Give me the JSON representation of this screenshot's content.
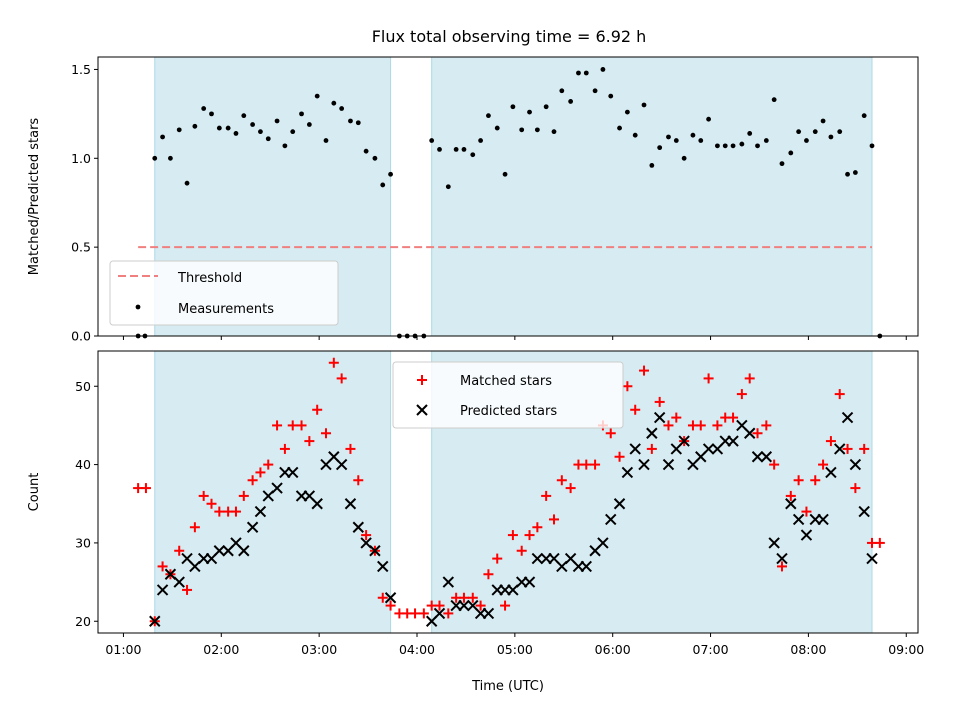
{
  "figure": {
    "title": "Flux total observing time = 6.92 h",
    "xlabel": "Time (UTC)"
  },
  "colors": {
    "shade": "#add8e6",
    "threshold": "#f08080",
    "measurements": "#000000",
    "matched": "#ff0000",
    "predicted": "#000000"
  },
  "shaded_intervals_hours": [
    [
      1.32,
      3.73
    ],
    [
      4.15,
      8.65
    ]
  ],
  "chart_data": [
    {
      "type": "scatter",
      "ylabel": "Matched/Predicted stars",
      "xlim_hours": [
        0.74,
        9.12
      ],
      "ylim": [
        0,
        1.57
      ],
      "yticks": [
        "0.0",
        "0.5",
        "1.0",
        "1.5"
      ],
      "legend_position": "lower left",
      "threshold": {
        "name": "Threshold",
        "value": 0.5,
        "x_range_hours": [
          1.15,
          8.65
        ]
      },
      "series": [
        {
          "name": "Measurements",
          "points": [
            [
              1.15,
              0.0
            ],
            [
              1.22,
              0.0
            ],
            [
              1.32,
              1.0
            ],
            [
              1.4,
              1.12
            ],
            [
              1.48,
              1.0
            ],
            [
              1.57,
              1.16
            ],
            [
              1.65,
              0.86
            ],
            [
              1.73,
              1.18
            ],
            [
              1.82,
              1.28
            ],
            [
              1.9,
              1.25
            ],
            [
              1.98,
              1.17
            ],
            [
              2.07,
              1.17
            ],
            [
              2.15,
              1.14
            ],
            [
              2.23,
              1.24
            ],
            [
              2.32,
              1.19
            ],
            [
              2.4,
              1.15
            ],
            [
              2.48,
              1.11
            ],
            [
              2.57,
              1.21
            ],
            [
              2.65,
              1.07
            ],
            [
              2.73,
              1.15
            ],
            [
              2.82,
              1.25
            ],
            [
              2.9,
              1.19
            ],
            [
              2.98,
              1.35
            ],
            [
              3.07,
              1.1
            ],
            [
              3.15,
              1.31
            ],
            [
              3.23,
              1.28
            ],
            [
              3.32,
              1.21
            ],
            [
              3.4,
              1.2
            ],
            [
              3.48,
              1.04
            ],
            [
              3.57,
              1.0
            ],
            [
              3.65,
              0.85
            ],
            [
              3.73,
              0.91
            ],
            [
              3.82,
              0.0
            ],
            [
              3.9,
              0.0
            ],
            [
              3.98,
              0.0
            ],
            [
              4.07,
              0.0
            ],
            [
              4.15,
              1.1
            ],
            [
              4.23,
              1.05
            ],
            [
              4.32,
              0.84
            ],
            [
              4.4,
              1.05
            ],
            [
              4.48,
              1.05
            ],
            [
              4.57,
              1.02
            ],
            [
              4.65,
              1.1
            ],
            [
              4.73,
              1.24
            ],
            [
              4.82,
              1.17
            ],
            [
              4.9,
              0.91
            ],
            [
              4.98,
              1.29
            ],
            [
              5.07,
              1.16
            ],
            [
              5.15,
              1.26
            ],
            [
              5.23,
              1.16
            ],
            [
              5.32,
              1.29
            ],
            [
              5.4,
              1.15
            ],
            [
              5.48,
              1.38
            ],
            [
              5.57,
              1.32
            ],
            [
              5.65,
              1.48
            ],
            [
              5.73,
              1.48
            ],
            [
              5.82,
              1.38
            ],
            [
              5.9,
              1.5
            ],
            [
              5.98,
              1.35
            ],
            [
              6.07,
              1.17
            ],
            [
              6.15,
              1.26
            ],
            [
              6.23,
              1.13
            ],
            [
              6.32,
              1.3
            ],
            [
              6.4,
              0.96
            ],
            [
              6.48,
              1.06
            ],
            [
              6.57,
              1.12
            ],
            [
              6.65,
              1.1
            ],
            [
              6.73,
              1.0
            ],
            [
              6.82,
              1.13
            ],
            [
              6.9,
              1.1
            ],
            [
              6.98,
              1.22
            ],
            [
              7.07,
              1.07
            ],
            [
              7.15,
              1.07
            ],
            [
              7.23,
              1.07
            ],
            [
              7.32,
              1.08
            ],
            [
              7.4,
              1.14
            ],
            [
              7.48,
              1.07
            ],
            [
              7.57,
              1.1
            ],
            [
              7.65,
              1.33
            ],
            [
              7.73,
              0.97
            ],
            [
              7.82,
              1.03
            ],
            [
              7.9,
              1.15
            ],
            [
              7.98,
              1.1
            ],
            [
              8.07,
              1.15
            ],
            [
              8.15,
              1.21
            ],
            [
              8.23,
              1.12
            ],
            [
              8.32,
              1.15
            ],
            [
              8.4,
              0.91
            ],
            [
              8.48,
              0.92
            ],
            [
              8.57,
              1.24
            ],
            [
              8.65,
              1.07
            ],
            [
              8.73,
              0.0
            ]
          ]
        }
      ]
    },
    {
      "type": "scatter",
      "ylabel": "Count",
      "xlim_hours": [
        0.74,
        9.12
      ],
      "ylim": [
        18.5,
        54.5
      ],
      "yticks": [
        "20",
        "30",
        "40",
        "50"
      ],
      "xticks": [
        "01:00",
        "02:00",
        "03:00",
        "04:00",
        "05:00",
        "06:00",
        "07:00",
        "08:00",
        "09:00"
      ],
      "legend_position": "upper center",
      "series": [
        {
          "name": "Matched stars",
          "marker": "plus",
          "points": [
            [
              1.15,
              37
            ],
            [
              1.23,
              37
            ],
            [
              1.32,
              20
            ],
            [
              1.4,
              27
            ],
            [
              1.48,
              26
            ],
            [
              1.57,
              29
            ],
            [
              1.65,
              24
            ],
            [
              1.73,
              32
            ],
            [
              1.82,
              36
            ],
            [
              1.9,
              35
            ],
            [
              1.98,
              34
            ],
            [
              2.07,
              34
            ],
            [
              2.15,
              34
            ],
            [
              2.23,
              36
            ],
            [
              2.32,
              38
            ],
            [
              2.4,
              39
            ],
            [
              2.48,
              40
            ],
            [
              2.57,
              45
            ],
            [
              2.65,
              42
            ],
            [
              2.73,
              45
            ],
            [
              2.82,
              45
            ],
            [
              2.9,
              43
            ],
            [
              2.98,
              47
            ],
            [
              3.07,
              44
            ],
            [
              3.15,
              53
            ],
            [
              3.23,
              51
            ],
            [
              3.32,
              42
            ],
            [
              3.4,
              38
            ],
            [
              3.48,
              31
            ],
            [
              3.57,
              29
            ],
            [
              3.65,
              23
            ],
            [
              3.73,
              22
            ],
            [
              3.82,
              21
            ],
            [
              3.9,
              21
            ],
            [
              3.98,
              21
            ],
            [
              4.07,
              21
            ],
            [
              4.15,
              22
            ],
            [
              4.23,
              22
            ],
            [
              4.32,
              21
            ],
            [
              4.4,
              23
            ],
            [
              4.48,
              23
            ],
            [
              4.57,
              23
            ],
            [
              4.65,
              22
            ],
            [
              4.73,
              26
            ],
            [
              4.82,
              28
            ],
            [
              4.9,
              22
            ],
            [
              4.98,
              31
            ],
            [
              5.07,
              29
            ],
            [
              5.15,
              31
            ],
            [
              5.23,
              32
            ],
            [
              5.32,
              36
            ],
            [
              5.4,
              33
            ],
            [
              5.48,
              38
            ],
            [
              5.57,
              37
            ],
            [
              5.65,
              40
            ],
            [
              5.73,
              40
            ],
            [
              5.82,
              40
            ],
            [
              5.9,
              45
            ],
            [
              5.98,
              44
            ],
            [
              6.07,
              41
            ],
            [
              6.15,
              50
            ],
            [
              6.23,
              47
            ],
            [
              6.32,
              52
            ],
            [
              6.4,
              42
            ],
            [
              6.48,
              48
            ],
            [
              6.57,
              45
            ],
            [
              6.65,
              46
            ],
            [
              6.73,
              43
            ],
            [
              6.82,
              45
            ],
            [
              6.9,
              45
            ],
            [
              6.98,
              51
            ],
            [
              7.07,
              45
            ],
            [
              7.15,
              46
            ],
            [
              7.23,
              46
            ],
            [
              7.32,
              49
            ],
            [
              7.4,
              51
            ],
            [
              7.48,
              44
            ],
            [
              7.57,
              45
            ],
            [
              7.65,
              40
            ],
            [
              7.73,
              27
            ],
            [
              7.82,
              36
            ],
            [
              7.9,
              38
            ],
            [
              7.98,
              34
            ],
            [
              8.07,
              38
            ],
            [
              8.15,
              40
            ],
            [
              8.23,
              43
            ],
            [
              8.32,
              49
            ],
            [
              8.4,
              42
            ],
            [
              8.48,
              37
            ],
            [
              8.57,
              42
            ],
            [
              8.65,
              30
            ],
            [
              8.73,
              30
            ]
          ]
        },
        {
          "name": "Predicted stars",
          "marker": "x",
          "points": [
            [
              1.32,
              20
            ],
            [
              1.4,
              24
            ],
            [
              1.48,
              26
            ],
            [
              1.57,
              25
            ],
            [
              1.65,
              28
            ],
            [
              1.73,
              27
            ],
            [
              1.82,
              28
            ],
            [
              1.9,
              28
            ],
            [
              1.98,
              29
            ],
            [
              2.07,
              29
            ],
            [
              2.15,
              30
            ],
            [
              2.23,
              29
            ],
            [
              2.32,
              32
            ],
            [
              2.4,
              34
            ],
            [
              2.48,
              36
            ],
            [
              2.57,
              37
            ],
            [
              2.65,
              39
            ],
            [
              2.73,
              39
            ],
            [
              2.82,
              36
            ],
            [
              2.9,
              36
            ],
            [
              2.98,
              35
            ],
            [
              3.07,
              40
            ],
            [
              3.15,
              41
            ],
            [
              3.23,
              40
            ],
            [
              3.32,
              35
            ],
            [
              3.4,
              32
            ],
            [
              3.48,
              30
            ],
            [
              3.57,
              29
            ],
            [
              3.65,
              27
            ],
            [
              3.73,
              23
            ],
            [
              4.15,
              20
            ],
            [
              4.23,
              21
            ],
            [
              4.32,
              25
            ],
            [
              4.4,
              22
            ],
            [
              4.48,
              22
            ],
            [
              4.57,
              22
            ],
            [
              4.65,
              21
            ],
            [
              4.73,
              21
            ],
            [
              4.82,
              24
            ],
            [
              4.9,
              24
            ],
            [
              4.98,
              24
            ],
            [
              5.07,
              25
            ],
            [
              5.15,
              25
            ],
            [
              5.23,
              28
            ],
            [
              5.32,
              28
            ],
            [
              5.4,
              28
            ],
            [
              5.48,
              27
            ],
            [
              5.57,
              28
            ],
            [
              5.65,
              27
            ],
            [
              5.73,
              27
            ],
            [
              5.82,
              29
            ],
            [
              5.9,
              30
            ],
            [
              5.98,
              33
            ],
            [
              6.07,
              35
            ],
            [
              6.15,
              39
            ],
            [
              6.23,
              42
            ],
            [
              6.32,
              40
            ],
            [
              6.4,
              44
            ],
            [
              6.48,
              46
            ],
            [
              6.57,
              40
            ],
            [
              6.65,
              42
            ],
            [
              6.73,
              43
            ],
            [
              6.82,
              40
            ],
            [
              6.9,
              41
            ],
            [
              6.98,
              42
            ],
            [
              7.07,
              42
            ],
            [
              7.15,
              43
            ],
            [
              7.23,
              43
            ],
            [
              7.32,
              45
            ],
            [
              7.4,
              44
            ],
            [
              7.48,
              41
            ],
            [
              7.57,
              41
            ],
            [
              7.65,
              30
            ],
            [
              7.73,
              28
            ],
            [
              7.82,
              35
            ],
            [
              7.9,
              33
            ],
            [
              7.98,
              31
            ],
            [
              8.07,
              33
            ],
            [
              8.15,
              33
            ],
            [
              8.23,
              39
            ],
            [
              8.32,
              42
            ],
            [
              8.4,
              46
            ],
            [
              8.48,
              40
            ],
            [
              8.57,
              34
            ],
            [
              8.65,
              28
            ]
          ]
        }
      ]
    }
  ]
}
